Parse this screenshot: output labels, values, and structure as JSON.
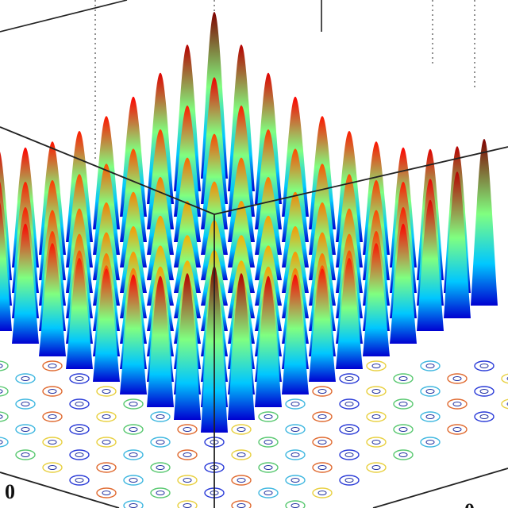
{
  "axes": {
    "x_tick": 0,
    "y_tick": 0
  }
}
